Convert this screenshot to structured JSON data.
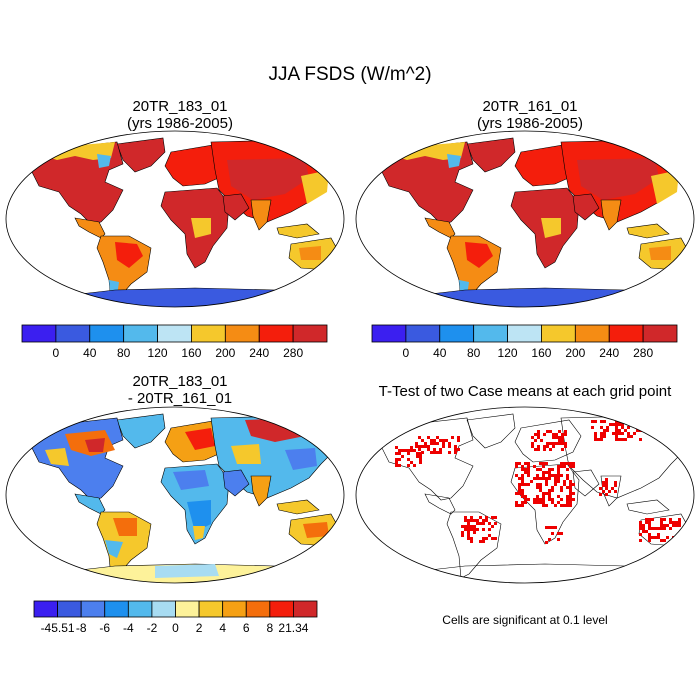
{
  "figure": {
    "title": "JJA FSDS (W/m^2)",
    "panels": [
      {
        "id": "p1",
        "title_line1": "20TR_183_01",
        "title_line2": "(yrs 1986-2005)",
        "kind": "field"
      },
      {
        "id": "p2",
        "title_line1": "20TR_161_01",
        "title_line2": "(yrs 1986-2005)",
        "kind": "field"
      },
      {
        "id": "p3",
        "title_line1": "20TR_183_01",
        "title_line2": "- 20TR_161_01",
        "kind": "difference"
      },
      {
        "id": "p4",
        "title_line1": "T-Test of two Case means at each grid point",
        "title_line2": "",
        "kind": "significance"
      }
    ],
    "significance_note": "Cells are significant at 0.1 level"
  },
  "colorbars": {
    "field": {
      "colors": [
        "#3b1ff0",
        "#3a5ae0",
        "#1e90ee",
        "#53b9ec",
        "#bde4f4",
        "#f5c82c",
        "#f58c14",
        "#f41e0c",
        "#d0282a"
      ],
      "labels": [
        "0",
        "40",
        "80",
        "120",
        "160",
        "200",
        "240",
        "280"
      ]
    },
    "difference": {
      "colors": [
        "#3b1ff0",
        "#3a5ae0",
        "#4c7fee",
        "#1e90ee",
        "#53b9ec",
        "#a8dcf2",
        "#fdf29a",
        "#f5c82c",
        "#f5a014",
        "#f46e0c",
        "#f41e0c",
        "#d0282a"
      ],
      "labels": [
        "-45.51",
        "-8",
        "-6",
        "-4",
        "-2",
        "0",
        "2",
        "4",
        "6",
        "8",
        "21.34"
      ]
    },
    "significance_color": "#ee0000"
  }
}
